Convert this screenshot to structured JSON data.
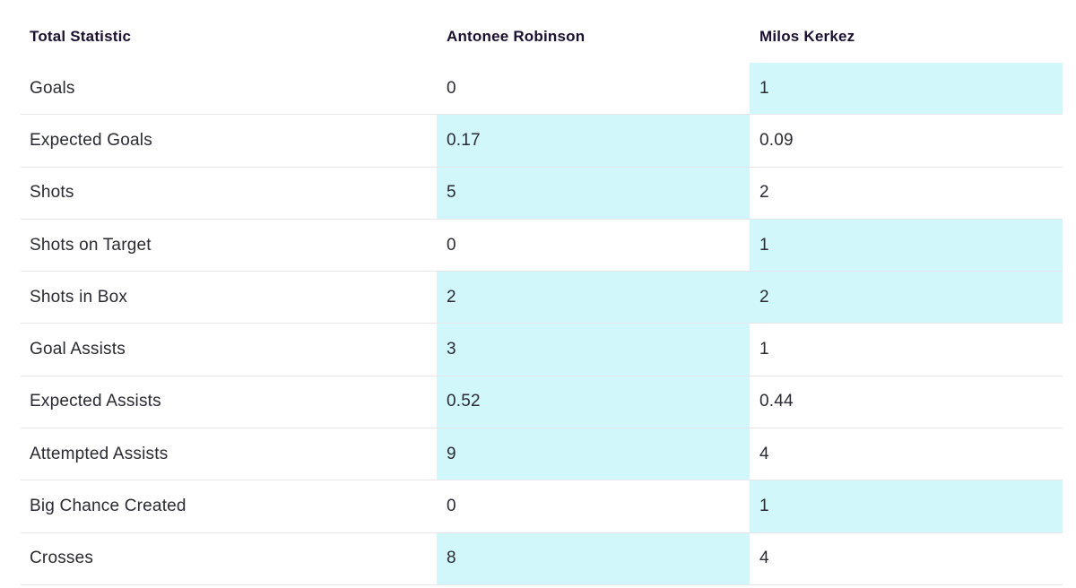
{
  "header": {
    "stat_label": "Total Statistic",
    "player1": "Antonee Robinson",
    "player2": "Milos Kerkez"
  },
  "highlight_color": "#d2f7fb",
  "rows": [
    {
      "stat": "Goals",
      "p1": "0",
      "p2": "1",
      "highlight": "p2"
    },
    {
      "stat": "Expected Goals",
      "p1": "0.17",
      "p2": "0.09",
      "highlight": "p1"
    },
    {
      "stat": "Shots",
      "p1": "5",
      "p2": "2",
      "highlight": "p1"
    },
    {
      "stat": "Shots on Target",
      "p1": "0",
      "p2": "1",
      "highlight": "p2"
    },
    {
      "stat": "Shots in Box",
      "p1": "2",
      "p2": "2",
      "highlight": "both"
    },
    {
      "stat": "Goal Assists",
      "p1": "3",
      "p2": "1",
      "highlight": "p1"
    },
    {
      "stat": "Expected Assists",
      "p1": "0.52",
      "p2": "0.44",
      "highlight": "p1"
    },
    {
      "stat": "Attempted Assists",
      "p1": "9",
      "p2": "4",
      "highlight": "p1"
    },
    {
      "stat": "Big Chance Created",
      "p1": "0",
      "p2": "1",
      "highlight": "p2"
    },
    {
      "stat": "Crosses",
      "p1": "8",
      "p2": "4",
      "highlight": "p1"
    }
  ]
}
